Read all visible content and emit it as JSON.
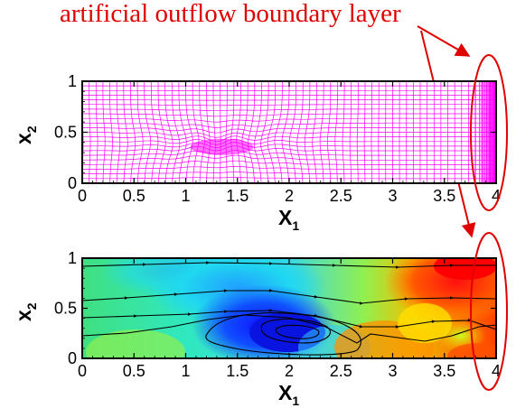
{
  "annotation": {
    "text": "artificial outflow boundary layer",
    "color": "#e00000"
  },
  "mesh_plot": {
    "x_ticks": [
      "0",
      "0.5",
      "1",
      "1.5",
      "2",
      "2.5",
      "3",
      "3.5",
      "4"
    ],
    "y_ticks": [
      "0",
      "0.5",
      "1"
    ],
    "xlabel": "X",
    "xlabel_sub": "1",
    "ylabel": "x",
    "ylabel_sub": "2",
    "mesh_color": "#ff00ff"
  },
  "flow_plot": {
    "x_ticks": [
      "0",
      "0.5",
      "1",
      "1.5",
      "2",
      "2.5",
      "3",
      "3.5",
      "4"
    ],
    "y_ticks": [
      "0",
      "0.5",
      "1"
    ],
    "xlabel": "X",
    "xlabel_sub": "1",
    "ylabel": "x",
    "ylabel_sub": "2"
  },
  "chart_data": [
    {
      "type": "mesh",
      "xlim": [
        0,
        4
      ],
      "ylim": [
        0,
        1
      ],
      "x_ticks": [
        0,
        0.5,
        1,
        1.5,
        2,
        2.5,
        3,
        3.5,
        4
      ],
      "y_ticks": [
        0,
        0.5,
        1
      ],
      "refinement_center": [
        1.35,
        0.4
      ],
      "outflow_layer_x": [
        3.8,
        4.0
      ]
    },
    {
      "type": "contour",
      "xlim": [
        0,
        4
      ],
      "ylim": [
        0,
        1
      ],
      "x_ticks": [
        0,
        0.5,
        1,
        1.5,
        2,
        2.5,
        3,
        3.5,
        4
      ],
      "y_ticks": [
        0,
        0.5,
        1
      ],
      "vortex_center": [
        2.0,
        0.25
      ],
      "streamlines": 4
    }
  ]
}
